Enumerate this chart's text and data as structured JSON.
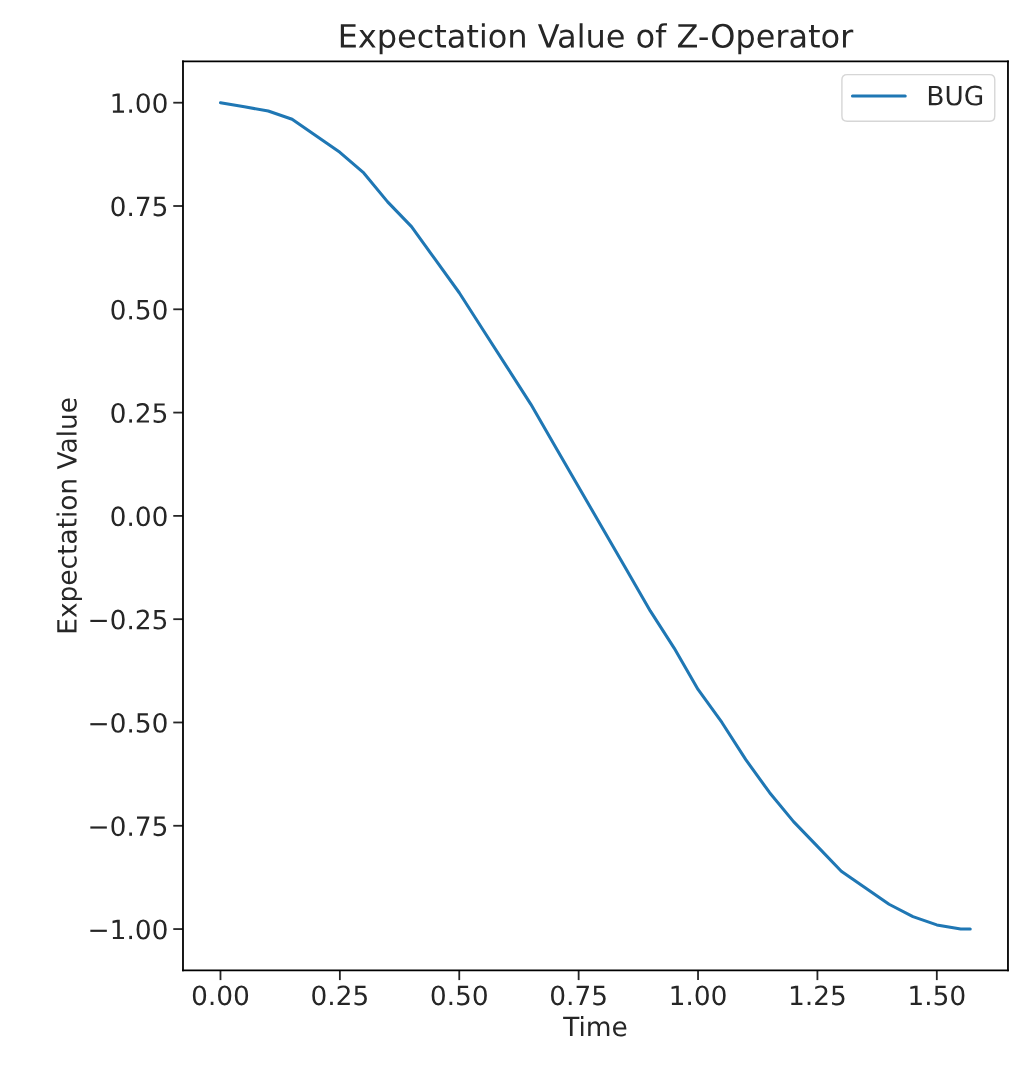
{
  "chart_data": {
    "type": "line",
    "title": "Expectation Value of Z-Operator",
    "xlabel": "Time",
    "ylabel": "Expectation Value",
    "x": [
      0,
      0.05,
      0.1,
      0.15,
      0.2,
      0.25,
      0.3,
      0.35,
      0.4,
      0.45,
      0.5,
      0.55,
      0.6,
      0.65,
      0.7,
      0.75,
      0.8,
      0.85,
      0.9,
      0.95,
      1.0,
      1.05,
      1.1,
      1.15,
      1.2,
      1.25,
      1.3,
      1.35,
      1.4,
      1.45,
      1.5,
      1.55,
      1.57
    ],
    "series": [
      {
        "name": "BUG",
        "color": "#1f77b4",
        "values": [
          1.0,
          0.99,
          0.98,
          0.96,
          0.92,
          0.88,
          0.83,
          0.76,
          0.7,
          0.62,
          0.54,
          0.45,
          0.36,
          0.27,
          0.17,
          0.07,
          -0.03,
          -0.13,
          -0.23,
          -0.32,
          -0.42,
          -0.5,
          -0.59,
          -0.67,
          -0.74,
          -0.8,
          -0.86,
          -0.9,
          -0.94,
          -0.97,
          -0.99,
          -1.0,
          -1.0
        ]
      }
    ],
    "xlim": [
      -0.0785,
      1.649
    ],
    "ylim": [
      -1.1,
      1.1
    ],
    "xticks": [
      {
        "value": 0,
        "label": "0.00"
      },
      {
        "value": 0.25,
        "label": "0.25"
      },
      {
        "value": 0.5,
        "label": "0.50"
      },
      {
        "value": 0.75,
        "label": "0.75"
      },
      {
        "value": 1.0,
        "label": "1.00"
      },
      {
        "value": 1.25,
        "label": "1.25"
      },
      {
        "value": 1.5,
        "label": "1.50"
      }
    ],
    "yticks": [
      {
        "value": -1,
        "label": "−1.00"
      },
      {
        "value": -0.75,
        "label": "−0.75"
      },
      {
        "value": -0.5,
        "label": "−0.50"
      },
      {
        "value": -0.25,
        "label": "−0.25"
      },
      {
        "value": 0,
        "label": "0.00"
      },
      {
        "value": 0.25,
        "label": "0.25"
      },
      {
        "value": 0.5,
        "label": "0.50"
      },
      {
        "value": 0.75,
        "label": "0.75"
      },
      {
        "value": 1,
        "label": "1.00"
      }
    ],
    "legend": "top right",
    "grid": false,
    "marker": "none",
    "line_style": "solid"
  }
}
